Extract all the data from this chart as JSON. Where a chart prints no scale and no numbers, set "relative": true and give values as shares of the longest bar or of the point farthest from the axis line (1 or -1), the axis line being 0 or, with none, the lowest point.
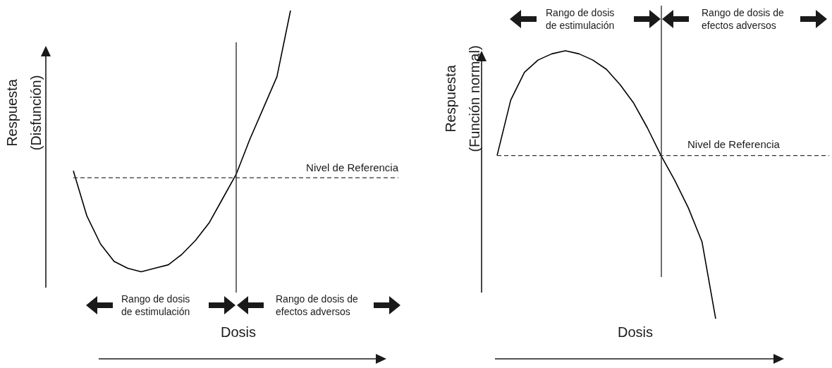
{
  "chart_data": [
    {
      "type": "line",
      "relative": true,
      "ylabel": "Respuesta (Disfunción)",
      "xlabel": "Dosis",
      "marker": "none",
      "categories": [
        null,
        null,
        null,
        null,
        null,
        null,
        null,
        null,
        null,
        null,
        null,
        null,
        null,
        null,
        null,
        null,
        null
      ],
      "series": [
        {
          "color": "#000000",
          "values": [
            0.54,
            0.41,
            0.33,
            0.28,
            0.26,
            0.25,
            0.26,
            0.27,
            0.3,
            0.34,
            0.39,
            0.46,
            0.53,
            0.63,
            0.72,
            0.81,
            1
          ]
        }
      ],
      "ref_lines": [
        {
          "axis": "y",
          "value": 0.52,
          "label": "Nivel de Referencia",
          "line_style": "dashed",
          "color": "#333333"
        }
      ],
      "annotations": [
        "Rango de dosis de estimulación",
        "Rango de dosis de efectos adversos"
      ]
    },
    {
      "type": "line",
      "relative": true,
      "ylabel": "Respuesta (Función normal)",
      "xlabel": "Dosis",
      "marker": "none",
      "categories": [
        null,
        null,
        null,
        null,
        null,
        null,
        null,
        null,
        null,
        null,
        null,
        null,
        null,
        null,
        null,
        null,
        null
      ],
      "series": [
        {
          "color": "#000000",
          "values": [
            0.66,
            0.84,
            0.93,
            0.97,
            0.99,
            1,
            0.99,
            0.97,
            0.94,
            0.89,
            0.83,
            0.75,
            0.66,
            0.58,
            0.49,
            0.38,
            0.13
          ]
        }
      ],
      "ref_lines": [
        {
          "axis": "y",
          "value": 0.66,
          "label": "Nivel de Referencia",
          "line_style": "dashed",
          "color": "#333333"
        }
      ],
      "annotations": [
        "Rango de dosis de estimulación",
        "Rango de dosis de efectos adversos"
      ]
    }
  ]
}
